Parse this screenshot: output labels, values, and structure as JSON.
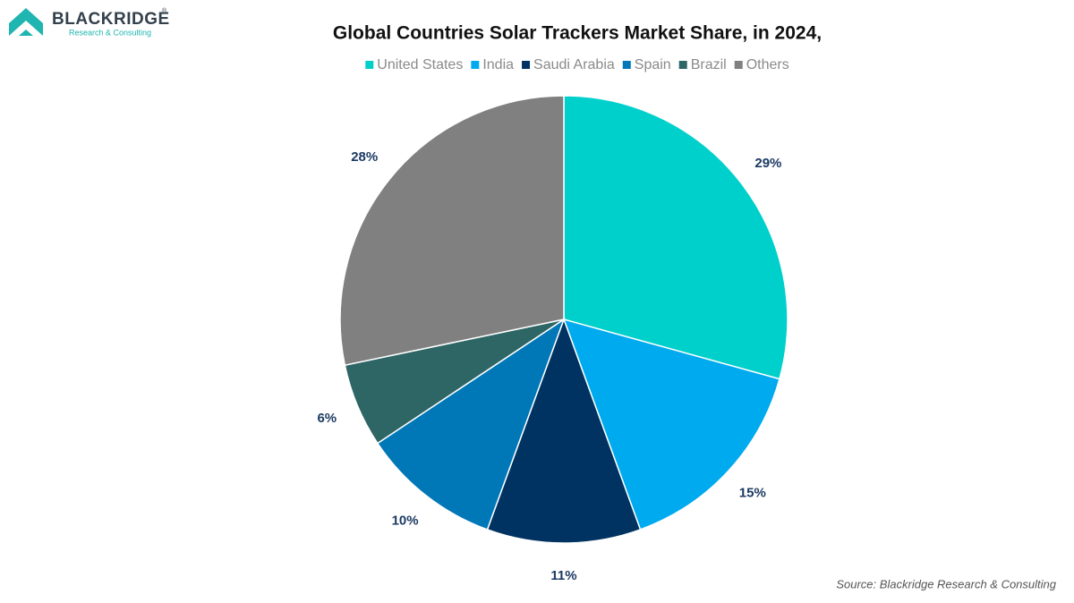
{
  "brand": {
    "name": "BLACKRIDGE",
    "mark": "®",
    "tagline": "Research & Consulting"
  },
  "source": "Source: Blackridge Research & Consulting",
  "chart_data": {
    "type": "pie",
    "title": "Global Countries Solar Trackers Market Share, in 2024,",
    "categories": [
      "United States",
      "India",
      "Saudi Arabia",
      "Spain",
      "Brazil",
      "Others"
    ],
    "values": [
      29,
      15,
      11,
      10,
      6,
      28
    ],
    "value_labels": [
      "29%",
      "15%",
      "11%",
      "10%",
      "6%",
      "28%"
    ],
    "colors": [
      "#00d0cb",
      "#00aaef",
      "#003362",
      "#0078b8",
      "#2e6565",
      "#808080"
    ],
    "legend": "top"
  }
}
